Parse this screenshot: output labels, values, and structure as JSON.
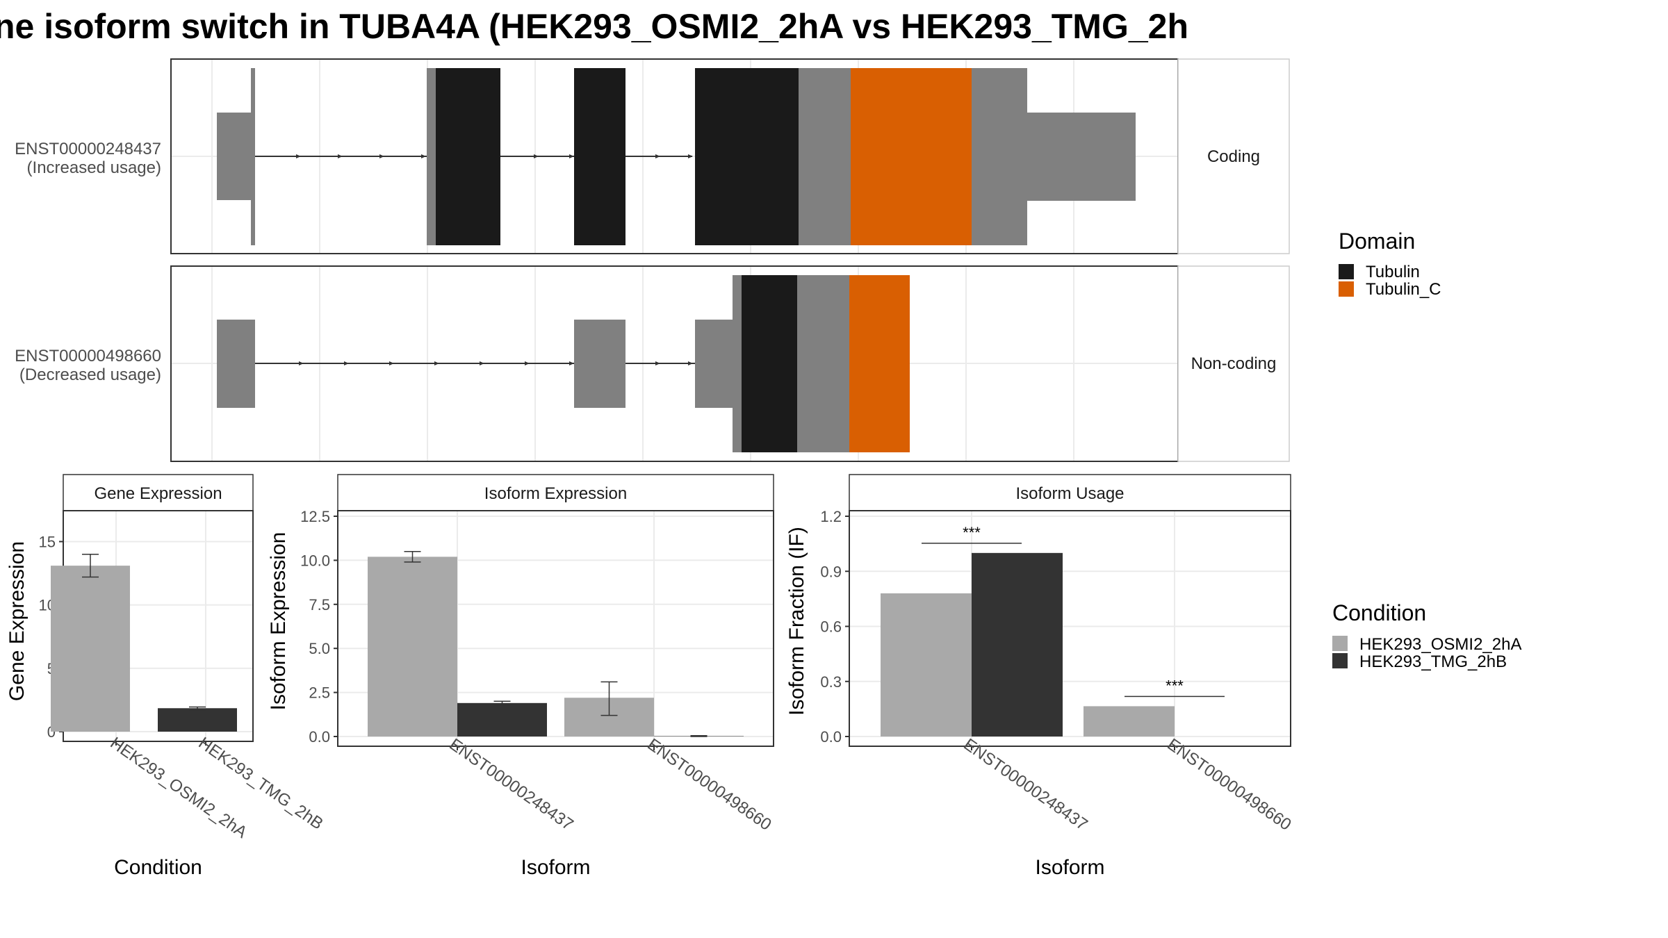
{
  "title": "ne isoform switch in TUBA4A (HEK293_OSMI2_2hA vs HEK293_TMG_2h",
  "colors": {
    "noncoding": "#808080",
    "tubulin": "#1a1a1a",
    "tubulin_c": "#d95f02",
    "cond_a": "#a9a9a9",
    "cond_b": "#333333"
  },
  "isoforms": [
    {
      "id": "ENST00000248437",
      "label": "ENST00000248437",
      "usage": "(Increased usage)",
      "type": "Coding"
    },
    {
      "id": "ENST00000498660",
      "label": "ENST00000498660",
      "usage": "(Decreased usage)",
      "type": "Non-coding"
    }
  ],
  "domain_legend": {
    "title": "Domain",
    "items": [
      "Tubulin",
      "Tubulin_C"
    ]
  },
  "condition_legend": {
    "title": "Condition",
    "items": [
      "HEK293_OSMI2_2hA",
      "HEK293_TMG_2hB"
    ]
  },
  "chart_data": [
    {
      "type": "bar",
      "panel": "Gene Expression",
      "categories": [
        "HEK293_OSMI2_2hA",
        "HEK293_TMG_2hB"
      ],
      "values": [
        13.1,
        1.85
      ],
      "error": [
        [
          12.2,
          14.0
        ],
        [
          1.7,
          1.95
        ]
      ],
      "ylabel": "Gene Expression",
      "xlabel": "Condition",
      "ylim": [
        0,
        17
      ],
      "yticks": [
        "0",
        "5",
        "10",
        "15"
      ]
    },
    {
      "type": "bar",
      "panel": "Isoform Expression",
      "categories": [
        "ENST00000248437",
        "ENST00000498660"
      ],
      "series": [
        {
          "name": "HEK293_OSMI2_2hA",
          "values": [
            10.2,
            2.2
          ],
          "error": [
            [
              9.9,
              10.5
            ],
            [
              1.2,
              3.1
            ]
          ]
        },
        {
          "name": "HEK293_TMG_2hB",
          "values": [
            1.9,
            0.02
          ],
          "error": [
            [
              1.8,
              2.0
            ],
            [
              0.0,
              0.05
            ]
          ]
        }
      ],
      "ylabel": "Isoform Expression",
      "xlabel": "Isoform",
      "ylim": [
        0,
        12.5
      ],
      "yticks": [
        "0.0",
        "2.5",
        "5.0",
        "7.5",
        "10.0",
        "12.5"
      ]
    },
    {
      "type": "bar",
      "panel": "Isoform Usage",
      "categories": [
        "ENST00000248437",
        "ENST00000498660"
      ],
      "series": [
        {
          "name": "HEK293_OSMI2_2hA",
          "values": [
            0.78,
            0.165
          ]
        },
        {
          "name": "HEK293_TMG_2hB",
          "values": [
            1.0,
            0.0
          ]
        }
      ],
      "significance": [
        "***",
        "***"
      ],
      "ylabel": "Isoform Fraction (IF)",
      "xlabel": "Isoform",
      "ylim": [
        0,
        1.2
      ],
      "yticks": [
        "0.0",
        "0.3",
        "0.6",
        "0.9",
        "1.2"
      ]
    }
  ]
}
